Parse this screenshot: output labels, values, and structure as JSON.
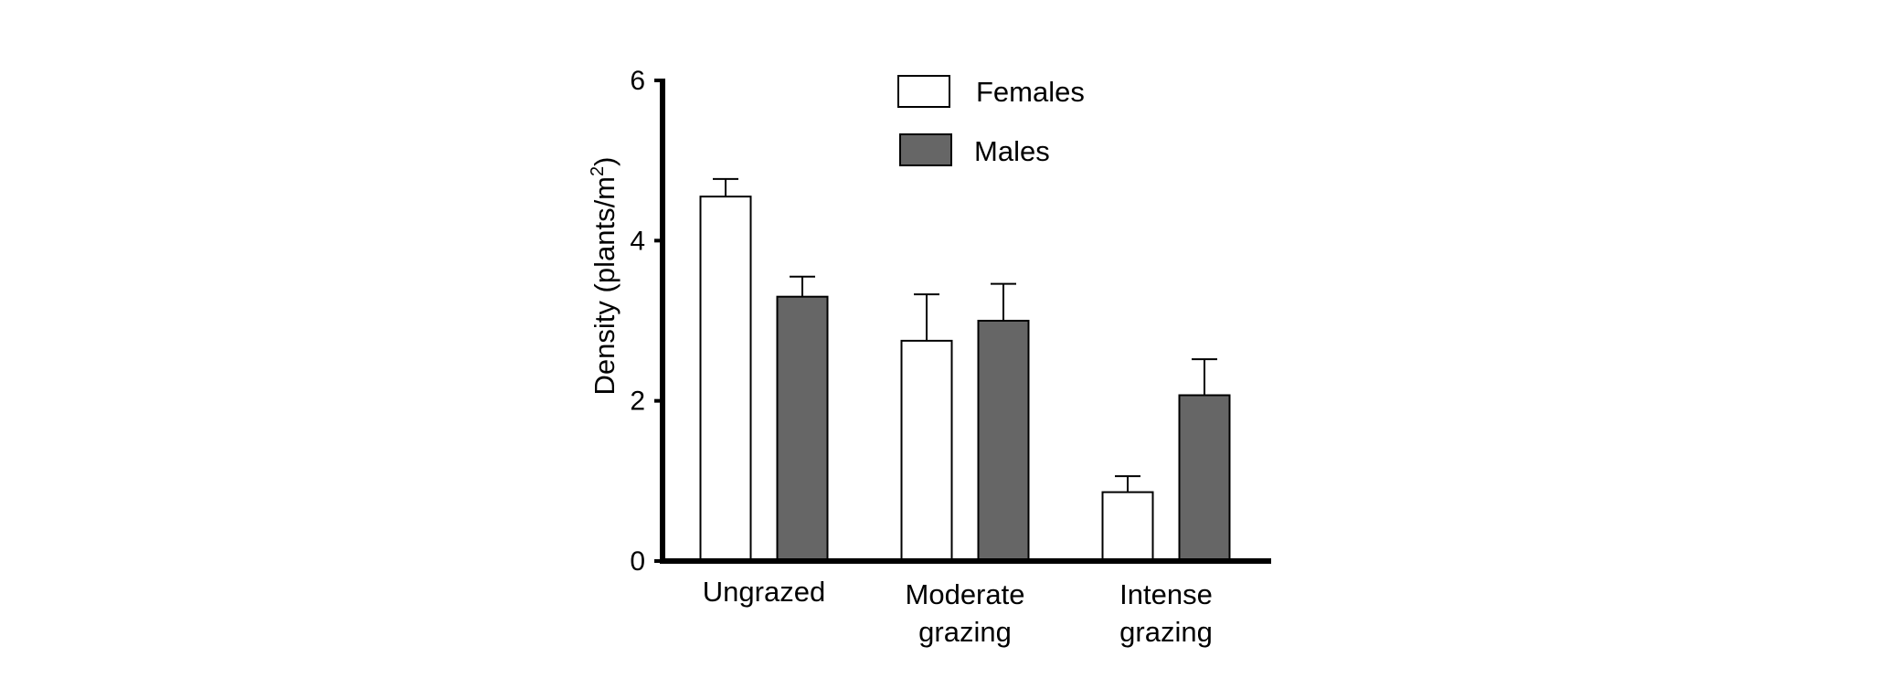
{
  "chart_data": {
    "type": "bar",
    "categories": [
      [
        "Ungrazed"
      ],
      [
        "Moderate",
        "grazing"
      ],
      [
        "Intense",
        "grazing"
      ]
    ],
    "series": [
      {
        "name": "Females",
        "color": "#ffffff",
        "values": [
          4.55,
          2.75,
          0.86
        ],
        "errors": [
          0.22,
          0.58,
          0.2
        ]
      },
      {
        "name": "Males",
        "color": "#666666",
        "values": [
          3.3,
          3.0,
          2.07
        ],
        "errors": [
          0.25,
          0.46,
          0.45
        ]
      }
    ],
    "ylabel": {
      "main": "Density (plants/m",
      "sup": "2",
      "close": ")"
    },
    "ylim": [
      0,
      6
    ],
    "yticks": [
      "0",
      "2",
      "4",
      "6"
    ],
    "grid": false,
    "legend_position": "top"
  }
}
